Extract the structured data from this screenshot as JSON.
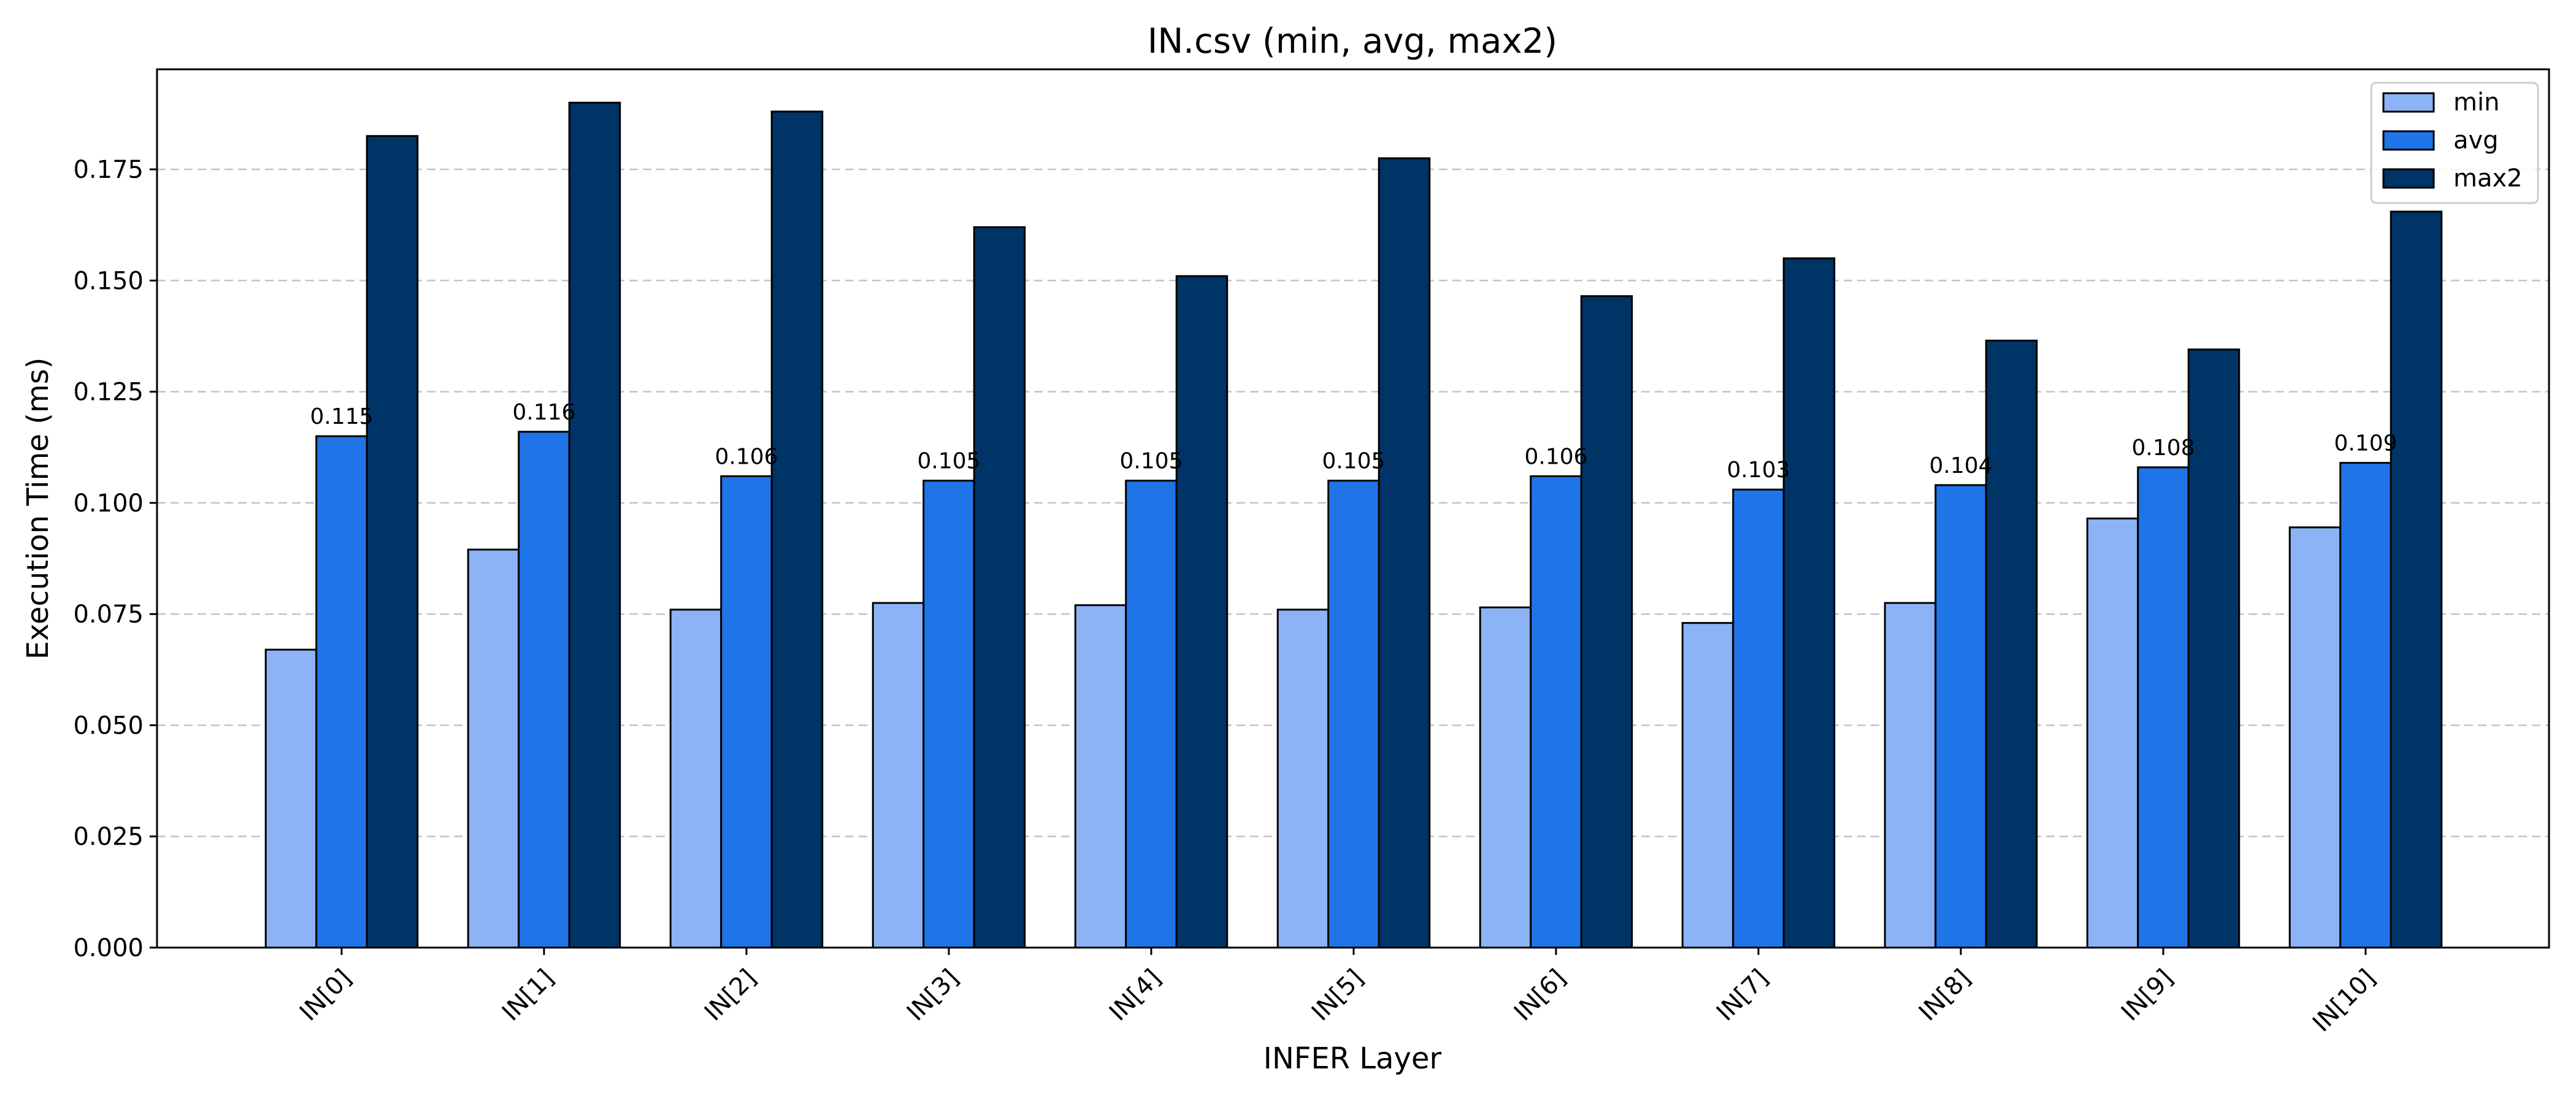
{
  "chart_data": {
    "type": "bar",
    "title": "IN.csv (min, avg, max2)",
    "xlabel": "INFER Layer",
    "ylabel": "Execution Time (ms)",
    "categories": [
      "IN[0]",
      "IN[1]",
      "IN[2]",
      "IN[3]",
      "IN[4]",
      "IN[5]",
      "IN[6]",
      "IN[7]",
      "IN[8]",
      "IN[9]",
      "IN[10]"
    ],
    "series": [
      {
        "name": "min",
        "color": "#8bb3f5",
        "values": [
          0.067,
          0.0895,
          0.076,
          0.0775,
          0.077,
          0.076,
          0.0765,
          0.073,
          0.0775,
          0.0965,
          0.0945
        ]
      },
      {
        "name": "avg",
        "color": "#1f74e8",
        "values": [
          0.115,
          0.116,
          0.106,
          0.105,
          0.105,
          0.105,
          0.106,
          0.103,
          0.104,
          0.108,
          0.109
        ]
      },
      {
        "name": "max2",
        "color": "#003366",
        "values": [
          0.1825,
          0.19,
          0.188,
          0.162,
          0.151,
          0.1775,
          0.1465,
          0.155,
          0.1365,
          0.1345,
          0.1655
        ]
      }
    ],
    "data_labels": {
      "series": "avg",
      "values": [
        "0.115",
        "0.116",
        "0.106",
        "0.105",
        "0.105",
        "0.105",
        "0.106",
        "0.103",
        "0.104",
        "0.108",
        "0.109"
      ]
    },
    "ylim": [
      0,
      0.1975
    ],
    "yticks": [
      "0.000",
      "0.025",
      "0.050",
      "0.075",
      "0.100",
      "0.125",
      "0.150",
      "0.175"
    ],
    "ytick_values": [
      0,
      0.025,
      0.05,
      0.075,
      0.1,
      0.125,
      0.15,
      0.175
    ],
    "grid": "y-dashed",
    "legend_position": "top-right"
  }
}
